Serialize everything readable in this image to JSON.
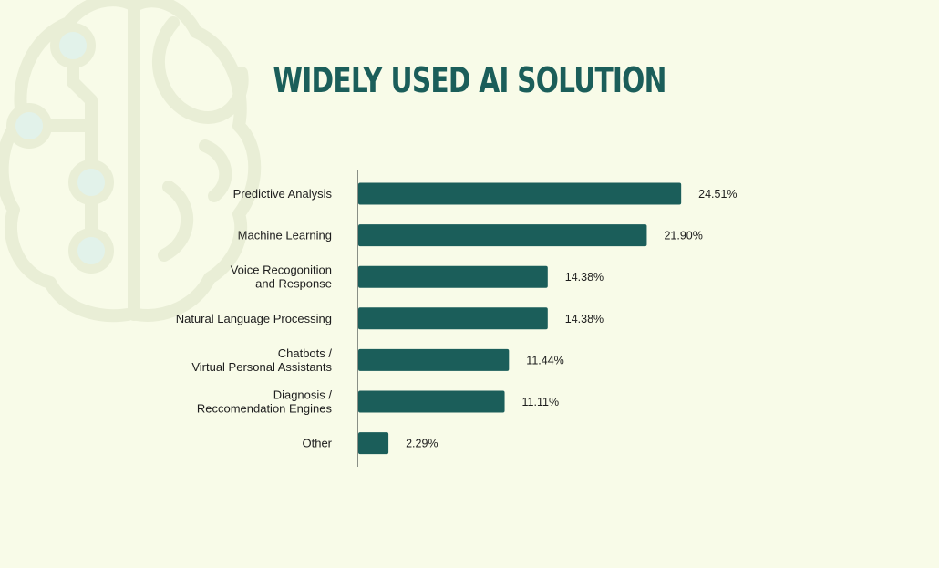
{
  "page": {
    "background_color": "#f8fbe8",
    "decoration": "brain-circuit-outline"
  },
  "chart_data": {
    "type": "bar",
    "orientation": "horizontal",
    "title": "WIDELY USED AI SOLUTION",
    "categories": [
      [
        "Predictive Analysis"
      ],
      [
        "Machine Learning"
      ],
      [
        "Voice Recogonition",
        "and Response"
      ],
      [
        "Natural Language Processing"
      ],
      [
        "Chatbots /",
        "Virtual Personal Assistants"
      ],
      [
        "Diagnosis /",
        "Reccomendation Engines"
      ],
      [
        "Other"
      ]
    ],
    "values": [
      24.51,
      21.9,
      14.38,
      14.38,
      11.44,
      11.11,
      2.29
    ],
    "value_labels": [
      "24.51%",
      "21.90%",
      "14.38%",
      "14.38%",
      "11.44%",
      "11.11%",
      "2.29%"
    ],
    "unit": "%",
    "xlim": [
      0,
      25
    ],
    "bar_color": "#1b5e5a",
    "title_color": "#1b5e5a",
    "grid": false,
    "legend": "none"
  }
}
